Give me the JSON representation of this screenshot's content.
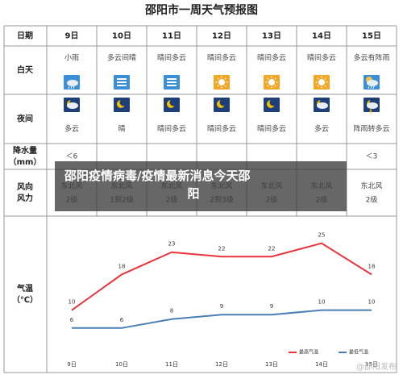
{
  "title": "邵阳市一周天气预报图",
  "table": {
    "row_labels": {
      "date": "日期",
      "day": "白天",
      "night": "夜间",
      "precip": "降水量\n（mm）",
      "wind": "风向\n风力",
      "temp": "气温\n（℃）"
    },
    "dates": [
      "9日",
      "10日",
      "11日",
      "12日",
      "13日",
      "14日",
      "15日"
    ],
    "day": [
      "小雨",
      "多云间晴",
      "晴间多云",
      "晴间多云",
      "晴间多云",
      "晴间多云",
      "多云有阵雨"
    ],
    "night": [
      "多云",
      "晴",
      "晴间多云",
      "晴间多云",
      "晴间多云",
      "多云",
      "阵雨转多云"
    ],
    "precip": [
      "＜6",
      null,
      null,
      null,
      null,
      null,
      "＜3"
    ],
    "wind_dir": [
      "东北风",
      "东北风",
      "东北风",
      "东北风",
      "东北风",
      "东北风",
      "东北风"
    ],
    "wind_force": [
      "2级",
      "1到2级",
      "2级",
      "2到3级",
      "2级",
      "2级",
      "2级"
    ]
  },
  "chart_data": {
    "type": "line",
    "categories": [
      "9日",
      "10日",
      "11日",
      "12日",
      "13日",
      "14日",
      "15日"
    ],
    "series": [
      {
        "name": "最高气温",
        "color": "#e8343b",
        "values": [
          10,
          18,
          23,
          22,
          22,
          25,
          18
        ]
      },
      {
        "name": "最低气温",
        "color": "#4a7fb5",
        "values": [
          6,
          6,
          8,
          9,
          9,
          10,
          10
        ]
      }
    ],
    "ylim": [
      0,
      30
    ]
  },
  "overlay": "邵阳疫情病毒/疫情最新消息今天邵阳",
  "watermark": "@邵阳发布"
}
